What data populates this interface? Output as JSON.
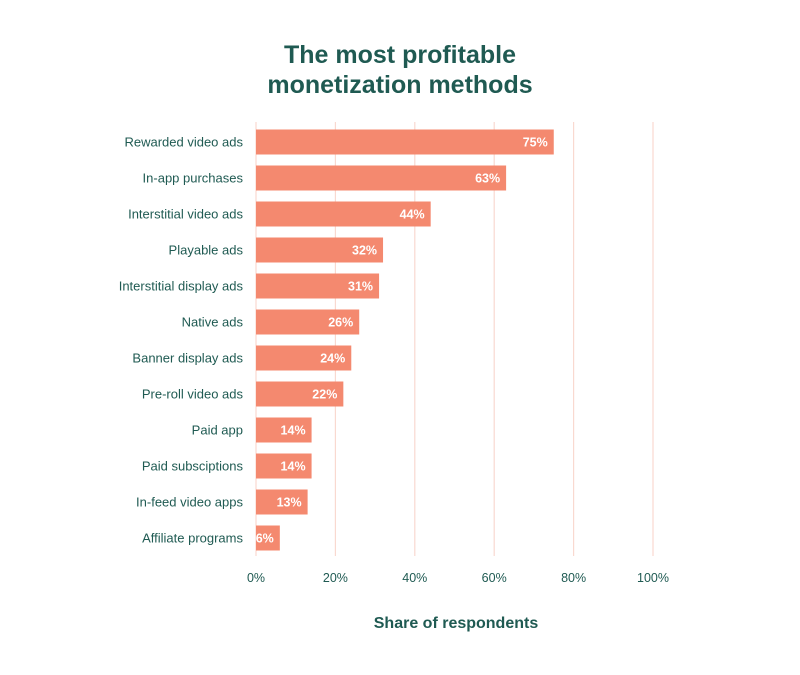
{
  "chart_data": {
    "type": "bar",
    "orientation": "horizontal",
    "title_lines": [
      "The most profitable",
      "monetization methods"
    ],
    "xlabel": "Share of respondents",
    "ylabel": "",
    "categories": [
      "Rewarded video ads",
      "In-app purchases",
      "Interstitial video ads",
      "Playable ads",
      "Interstitial display ads",
      "Native ads",
      "Banner display ads",
      "Pre-roll video ads",
      "Paid app",
      "Paid subsciptions",
      "In-feed video apps",
      "Affiliate programs"
    ],
    "values": [
      75,
      63,
      44,
      32,
      31,
      26,
      24,
      22,
      14,
      14,
      13,
      6
    ],
    "value_labels": [
      "75%",
      "63%",
      "44%",
      "32%",
      "31%",
      "26%",
      "24%",
      "22%",
      "14%",
      "14%",
      "13%",
      "6%"
    ],
    "xlim": [
      0,
      100
    ],
    "x_ticks": [
      0,
      20,
      40,
      60,
      80,
      100
    ],
    "x_tick_labels": [
      "0%",
      "20%",
      "40%",
      "60%",
      "80%",
      "100%"
    ],
    "grid": "vertical",
    "colors": {
      "bar": "#f4896f",
      "grid": "#f9d9d0",
      "text": "#1f5a52"
    }
  }
}
